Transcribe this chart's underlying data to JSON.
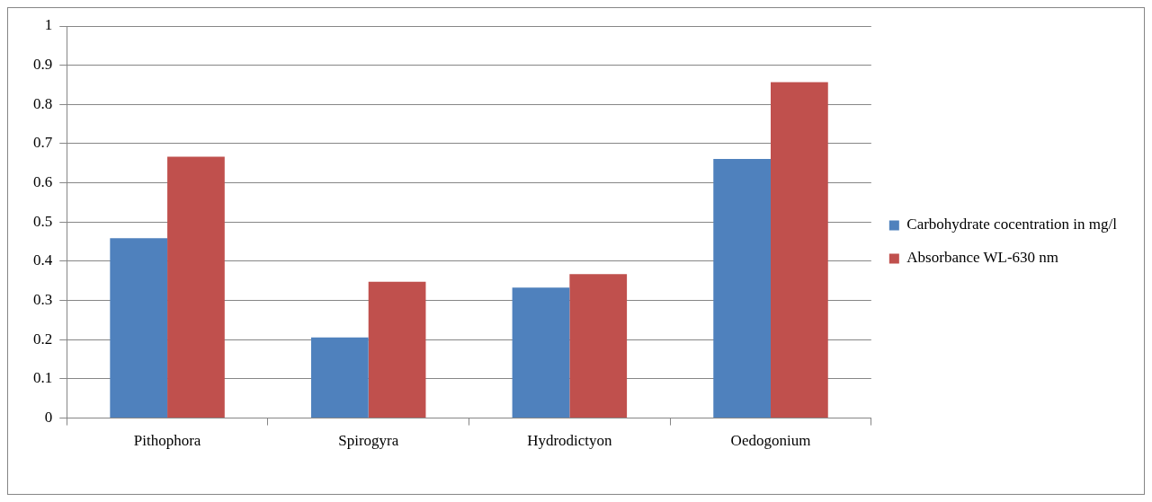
{
  "chart_data": {
    "type": "bar",
    "categories": [
      "Pithophora",
      "Spirogyra",
      "Hydrodictyon",
      "Oedogonium"
    ],
    "series": [
      {
        "name": "Carbohydrate cocentration in mg/l",
        "color": "#4f81bd",
        "values": [
          0.459,
          0.206,
          0.333,
          0.661
        ]
      },
      {
        "name": "Absorbance WL-630 nm",
        "color": "#c0504d",
        "values": [
          0.667,
          0.348,
          0.367,
          0.857
        ]
      }
    ],
    "ylim": [
      0,
      1
    ],
    "yticks": [
      0,
      0.1,
      0.2,
      0.3,
      0.4,
      0.5,
      0.6,
      0.7,
      0.8,
      0.9,
      1
    ],
    "grid": "y",
    "legend": "right"
  }
}
